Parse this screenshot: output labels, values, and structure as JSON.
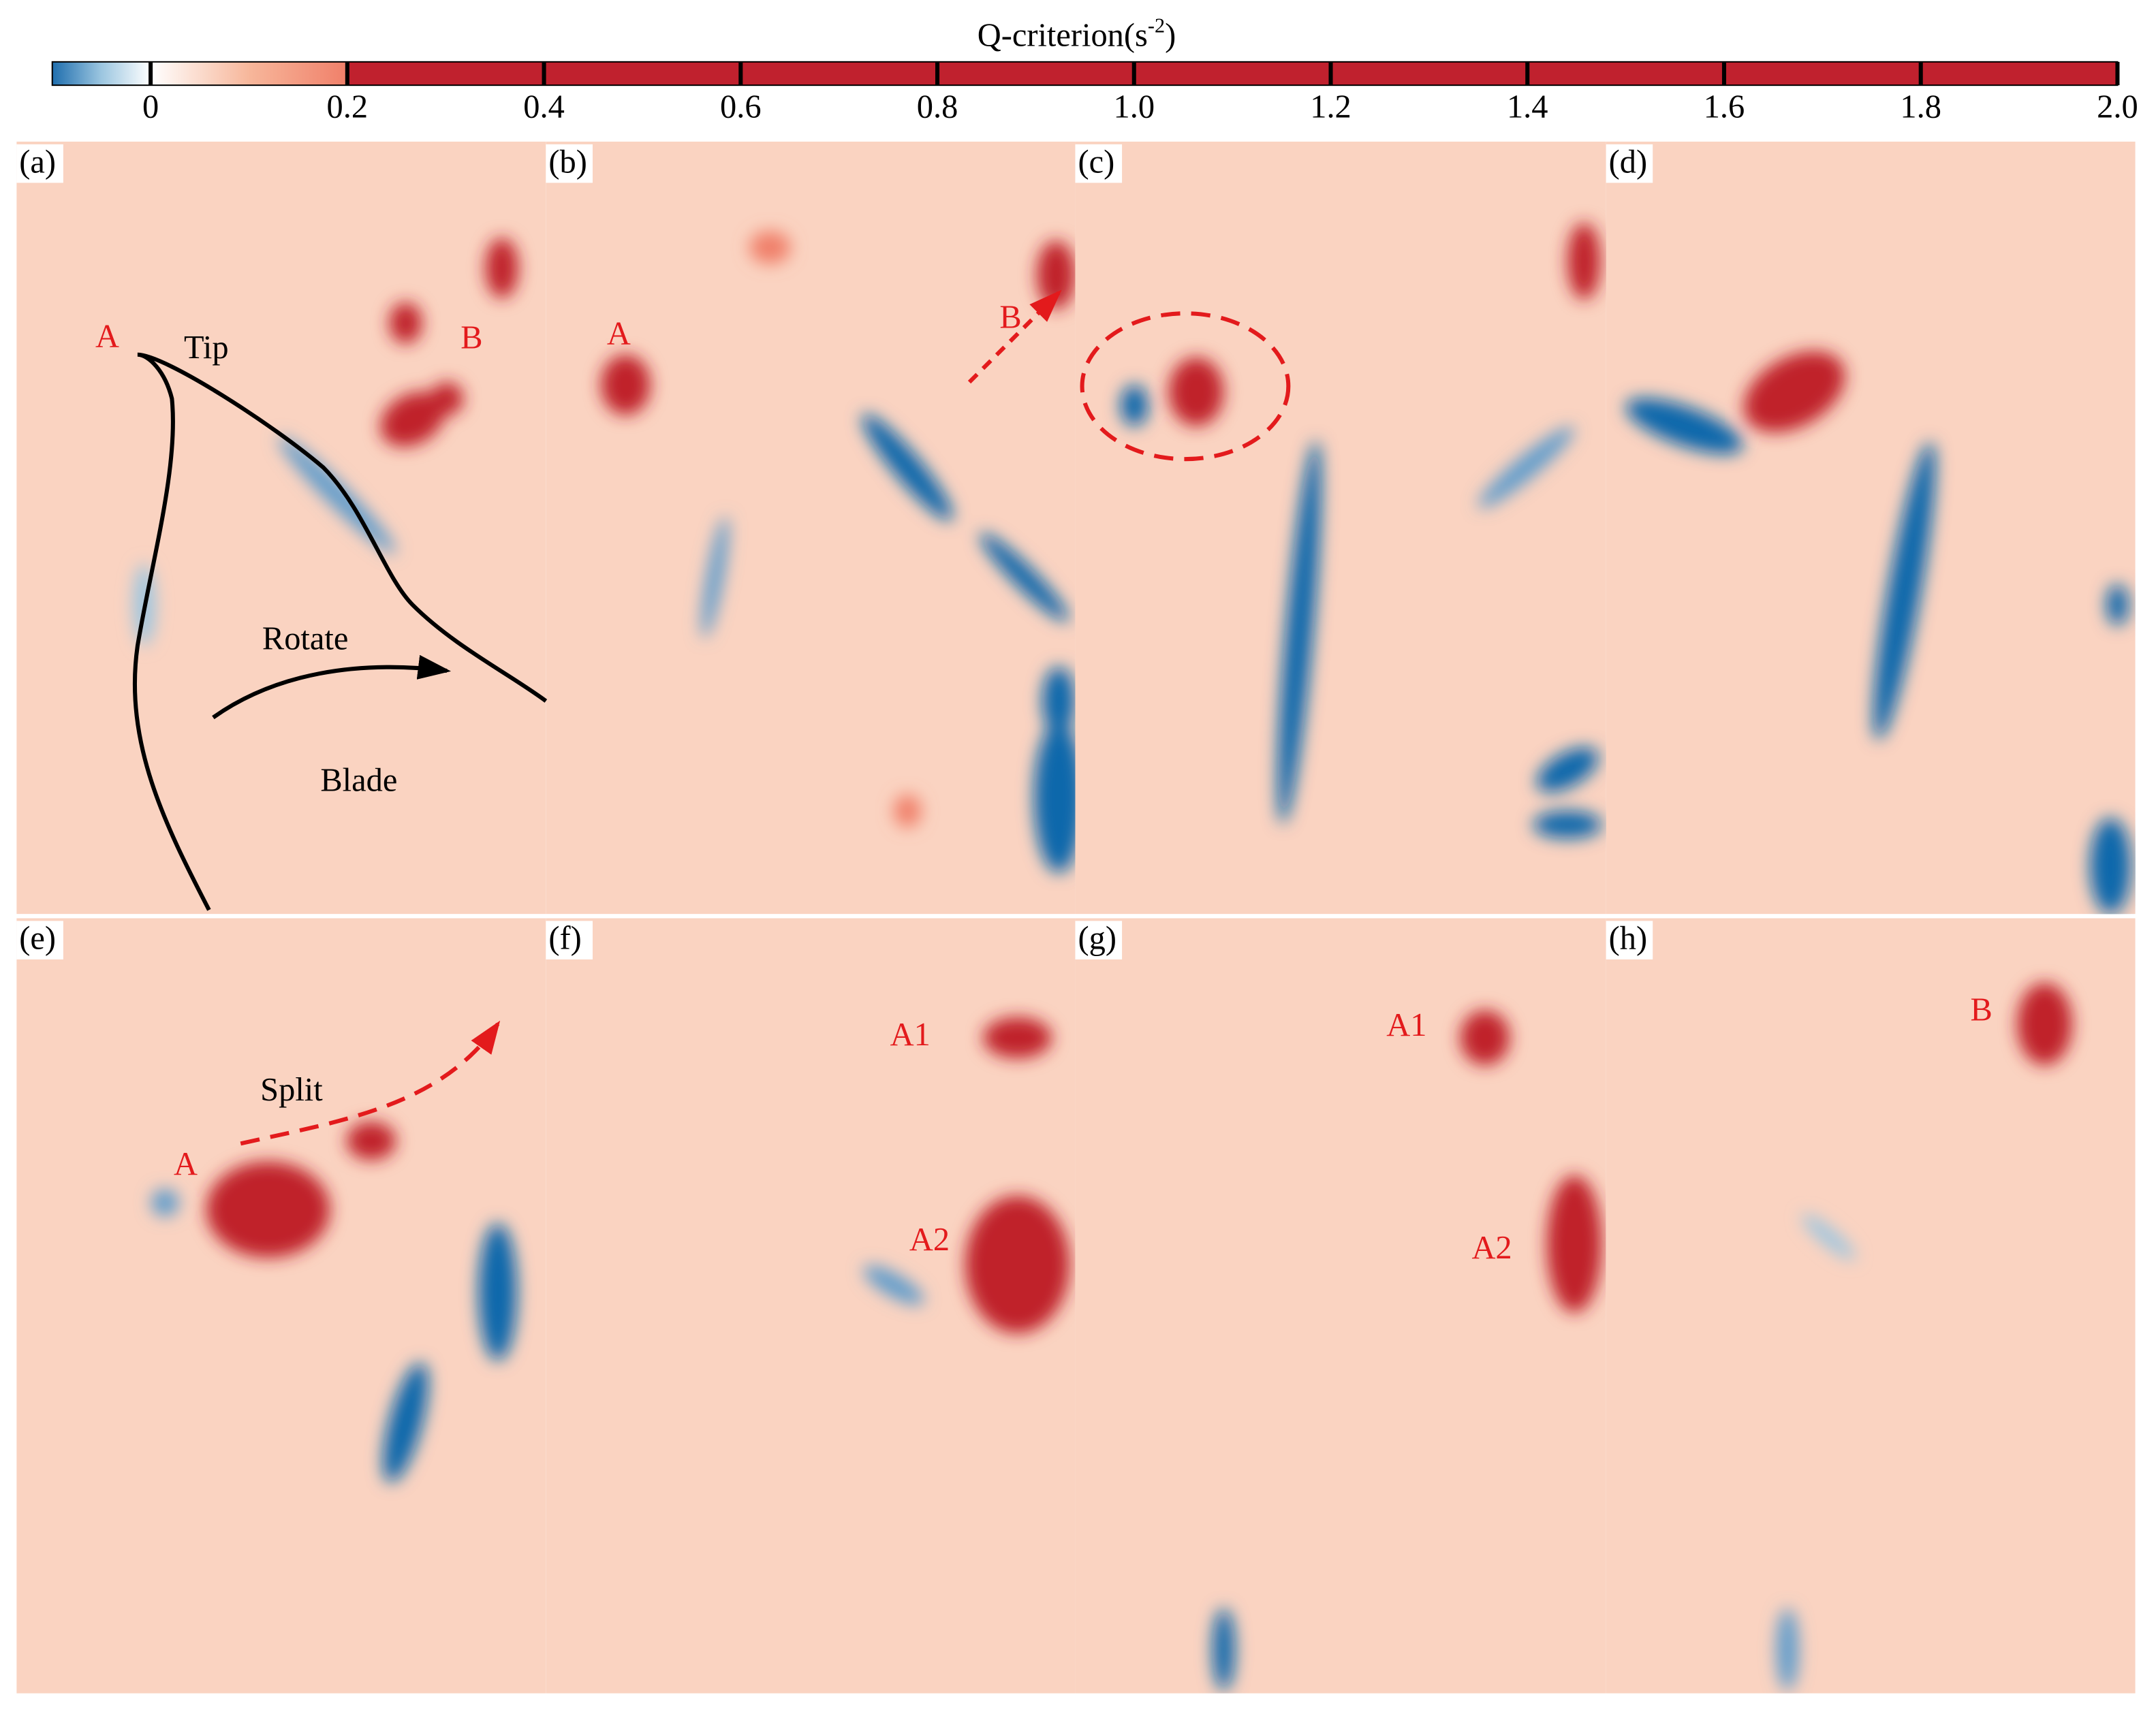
{
  "colorbar": {
    "title": "Q-criterion(s",
    "title_superscript": "-2",
    "title_end": ")",
    "lim": [
      -0.1,
      2.0
    ],
    "ticks": [
      0,
      0.2,
      0.4,
      0.6,
      0.8,
      {
        "value": 1.0,
        "label": "1.0"
      },
      1.2,
      1.4,
      1.6,
      1.8,
      {
        "value": 2.0,
        "label": "2.0"
      }
    ]
  },
  "panels": [
    {
      "label": "(a)",
      "annotations": [
        "A",
        "Tip",
        "B",
        "Rotate",
        "Blade"
      ]
    },
    {
      "label": "(b)",
      "annotations": [
        "A",
        "B"
      ]
    },
    {
      "label": "(c)",
      "annotations": []
    },
    {
      "label": "(d)",
      "annotations": []
    },
    {
      "label": "(e)",
      "annotations": [
        "Split",
        "A"
      ]
    },
    {
      "label": "(f)",
      "annotations": [
        "A1",
        "A2"
      ]
    },
    {
      "label": "(g)",
      "annotations": [
        "A1",
        "A2"
      ]
    },
    {
      "label": "(h)",
      "annotations": [
        "B"
      ]
    }
  ]
}
